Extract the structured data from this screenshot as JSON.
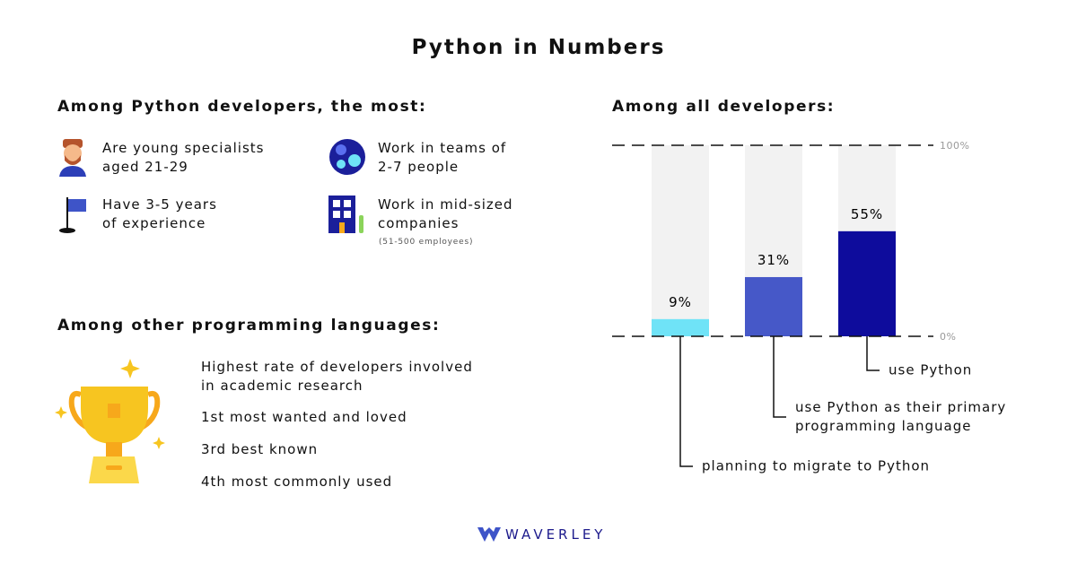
{
  "title": "Python in Numbers",
  "python_devs": {
    "heading": "Among Python developers, the most:",
    "items": [
      {
        "text": "Are young specialists\naged 21-29"
      },
      {
        "text": "Have 3-5 years\nof experience"
      },
      {
        "text": "Work in teams of\n2-7 people"
      },
      {
        "text": "Work in mid-sized\ncompanies",
        "note": "(51-500 employees)"
      }
    ]
  },
  "languages": {
    "heading": "Among other programming languages:",
    "items": [
      "Highest rate of developers involved\nin academic research",
      "1st most wanted and loved",
      "3rd best known",
      "4th most commonly used"
    ]
  },
  "chart_data": {
    "type": "bar",
    "title": "Among all developers:",
    "categories": [
      "planning to migrate to Python",
      "use Python as their primary\nprogramming language",
      "use Python"
    ],
    "values": [
      9,
      31,
      55
    ],
    "value_labels": [
      "9%",
      "31%",
      "55%"
    ],
    "colors": [
      "#6fe3f7",
      "#4658c8",
      "#0e0c9c"
    ],
    "ylim": [
      0,
      100
    ],
    "yticks": [
      {
        "value": 0,
        "label": "0%"
      },
      {
        "value": 100,
        "label": "100%"
      }
    ]
  },
  "footer": {
    "brand": "WAVERLEY"
  }
}
